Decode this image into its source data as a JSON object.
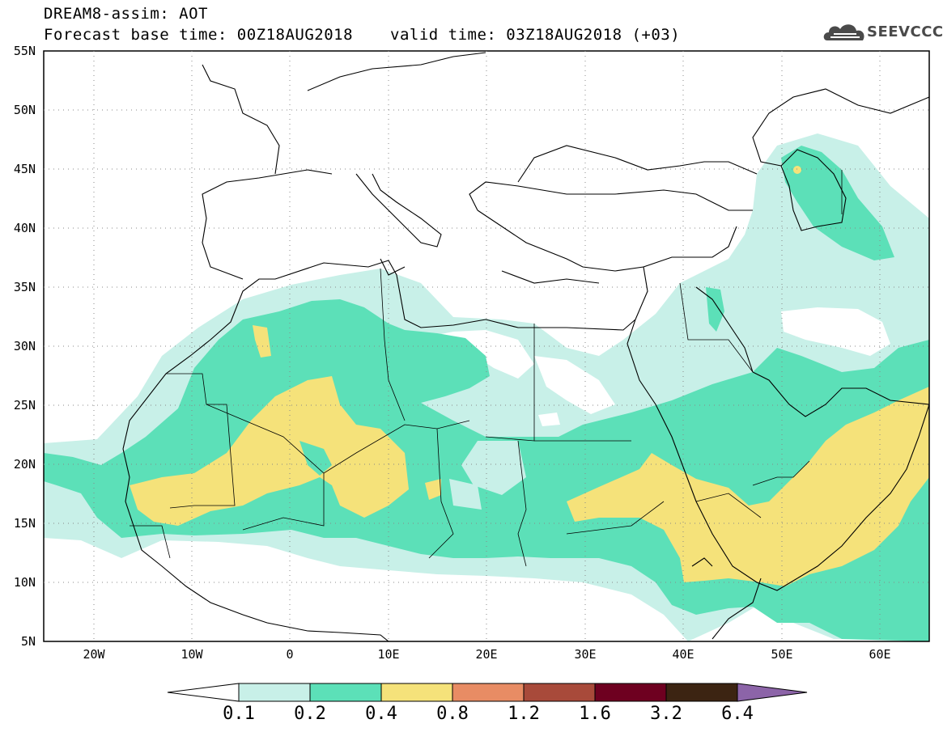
{
  "header": {
    "title_line1": "DREAM8-assim: AOT",
    "title_line2": "Forecast base time: 00Z18AUG2018",
    "valid_time": "valid time: 03Z18AUG2018 (+03)"
  },
  "logo": {
    "text": "SEEVCCC",
    "icon": "cloud-logo-icon"
  },
  "map": {
    "region": "North Africa and Middle East",
    "lat_ticks": [
      "55N",
      "50N",
      "45N",
      "40N",
      "35N",
      "30N",
      "25N",
      "20N",
      "15N",
      "10N",
      "5N"
    ],
    "lon_ticks": [
      "20W",
      "10W",
      "0",
      "10E",
      "20E",
      "30E",
      "40E",
      "50E",
      "60E"
    ],
    "lat_range": [
      5,
      55
    ],
    "lon_range": [
      -25,
      65
    ],
    "grid": "dotted"
  },
  "colorbar": {
    "labels": [
      "0.1",
      "0.2",
      "0.4",
      "0.8",
      "1.2",
      "1.6",
      "3.2",
      "6.4"
    ],
    "colors": [
      "#ffffff",
      "#c8f0e8",
      "#5ce0b8",
      "#f5e27a",
      "#e88c64",
      "#a84a3a",
      "#6e0020",
      "#3c2412",
      "#8c64a8"
    ]
  }
}
